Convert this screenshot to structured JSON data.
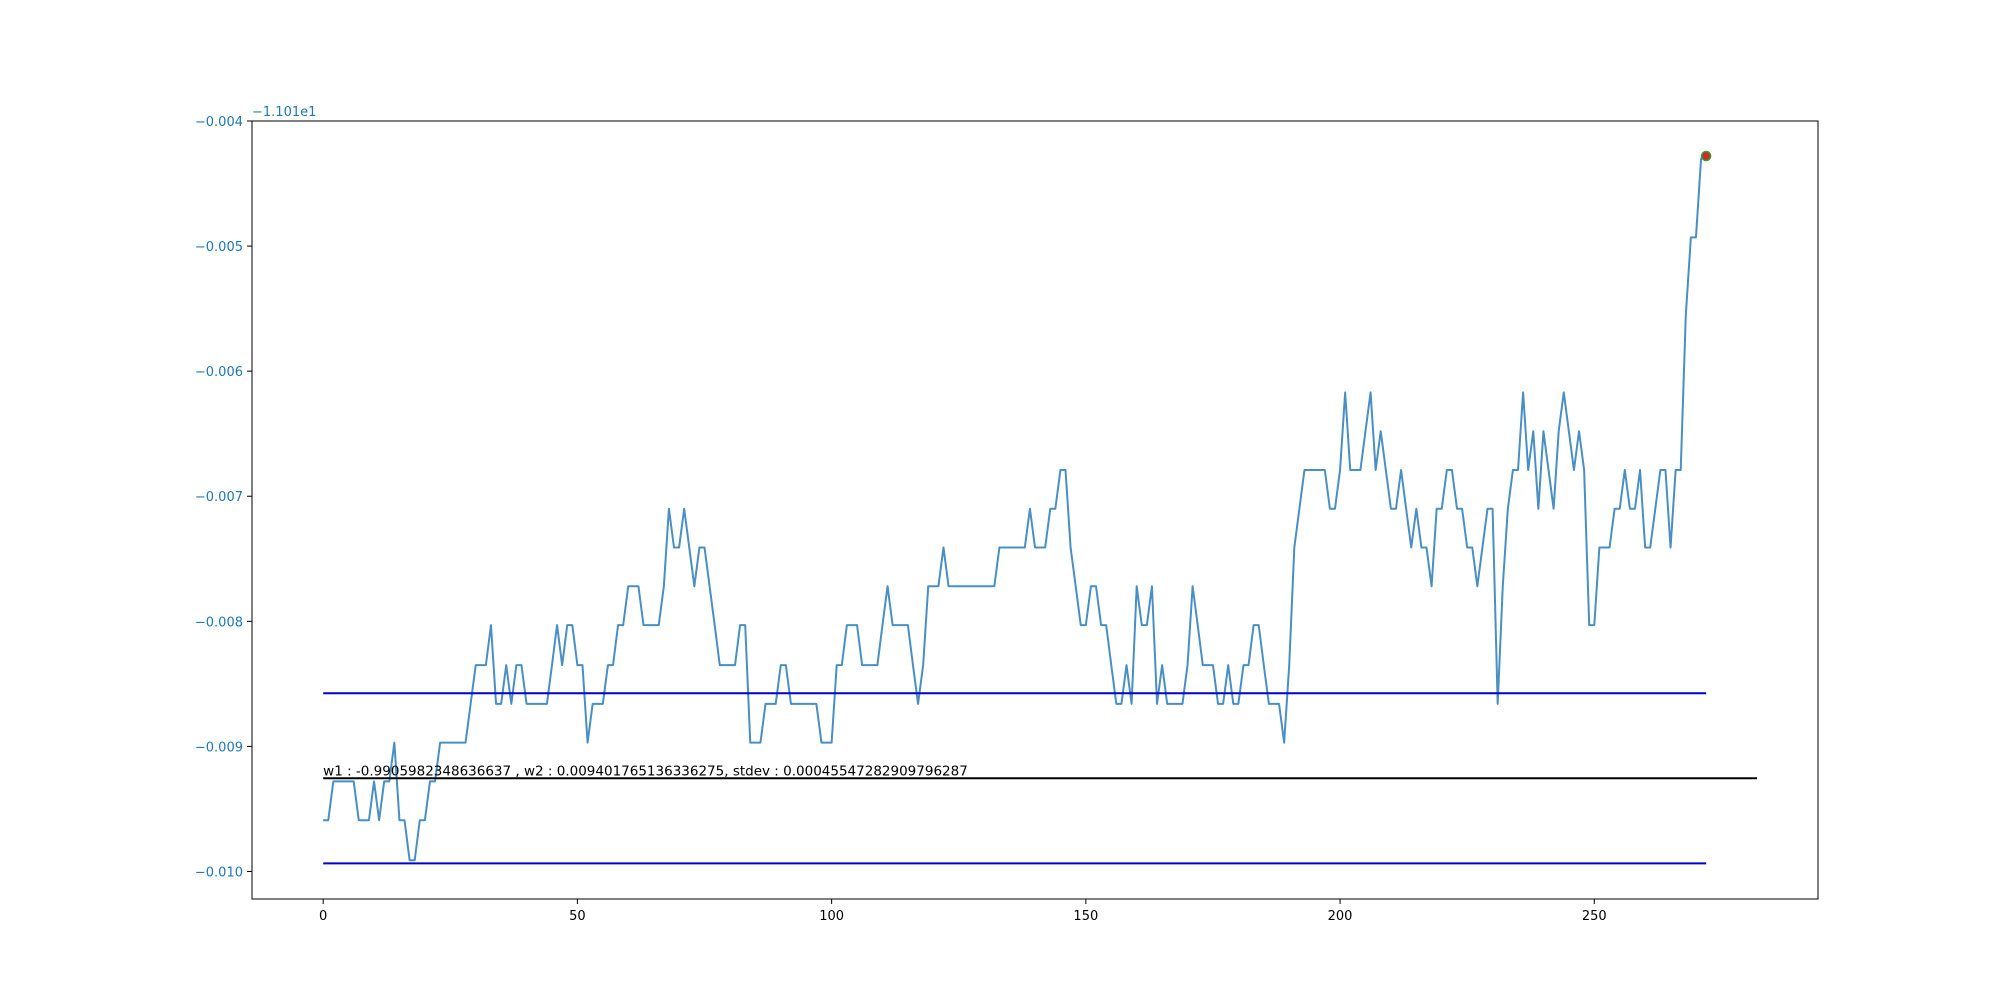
{
  "chart_data": {
    "type": "line",
    "title": "",
    "xlabel": "",
    "ylabel": "",
    "y_offset_label": "−1.101e1",
    "xlim": [
      -14,
      294
    ],
    "ylim": [
      -0.01022,
      -0.004
    ],
    "x_ticks": [
      0,
      50,
      100,
      150,
      200,
      250
    ],
    "y_ticks": [
      -0.004,
      -0.005,
      -0.006,
      -0.007,
      -0.008,
      -0.009,
      -0.01
    ],
    "y_tick_labels": [
      "−0.004",
      "−0.005",
      "−0.006",
      "−0.007",
      "−0.008",
      "−0.009",
      "−0.010"
    ],
    "grid": false,
    "series": [
      {
        "color": "#4a8fc4",
        "points": [
          [
            0,
            -0.00959
          ],
          [
            1,
            -0.00959
          ],
          [
            2,
            -0.00928
          ],
          [
            3,
            -0.00928
          ],
          [
            4,
            -0.00928
          ],
          [
            5,
            -0.00928
          ],
          [
            6,
            -0.00928
          ],
          [
            7,
            -0.00959
          ],
          [
            8,
            -0.00959
          ],
          [
            9,
            -0.00959
          ],
          [
            10,
            -0.00928
          ],
          [
            11,
            -0.00959
          ],
          [
            12,
            -0.00928
          ],
          [
            13,
            -0.00928
          ],
          [
            14,
            -0.00897
          ],
          [
            15,
            -0.00959
          ],
          [
            16,
            -0.00959
          ],
          [
            17,
            -0.00991
          ],
          [
            18,
            -0.00991
          ],
          [
            19,
            -0.00959
          ],
          [
            20,
            -0.00959
          ],
          [
            21,
            -0.00928
          ],
          [
            22,
            -0.00928
          ],
          [
            23,
            -0.00897
          ],
          [
            24,
            -0.00897
          ],
          [
            25,
            -0.00897
          ],
          [
            26,
            -0.00897
          ],
          [
            27,
            -0.00897
          ],
          [
            28,
            -0.00897
          ],
          [
            29,
            -0.00866
          ],
          [
            30,
            -0.00835
          ],
          [
            31,
            -0.00835
          ],
          [
            32,
            -0.00835
          ],
          [
            33,
            -0.00803
          ],
          [
            34,
            -0.00866
          ],
          [
            35,
            -0.00866
          ],
          [
            36,
            -0.00835
          ],
          [
            37,
            -0.00866
          ],
          [
            38,
            -0.00835
          ],
          [
            39,
            -0.00835
          ],
          [
            40,
            -0.00866
          ],
          [
            41,
            -0.00866
          ],
          [
            42,
            -0.00866
          ],
          [
            43,
            -0.00866
          ],
          [
            44,
            -0.00866
          ],
          [
            45,
            -0.00835
          ],
          [
            46,
            -0.00803
          ],
          [
            47,
            -0.00835
          ],
          [
            48,
            -0.00803
          ],
          [
            49,
            -0.00803
          ],
          [
            50,
            -0.00835
          ],
          [
            51,
            -0.00835
          ],
          [
            52,
            -0.00897
          ],
          [
            53,
            -0.00866
          ],
          [
            54,
            -0.00866
          ],
          [
            55,
            -0.00866
          ],
          [
            56,
            -0.00835
          ],
          [
            57,
            -0.00835
          ],
          [
            58,
            -0.00803
          ],
          [
            59,
            -0.00803
          ],
          [
            60,
            -0.00772
          ],
          [
            61,
            -0.00772
          ],
          [
            62,
            -0.00772
          ],
          [
            63,
            -0.00803
          ],
          [
            64,
            -0.00803
          ],
          [
            65,
            -0.00803
          ],
          [
            66,
            -0.00803
          ],
          [
            67,
            -0.00772
          ],
          [
            68,
            -0.0071
          ],
          [
            69,
            -0.00741
          ],
          [
            70,
            -0.00741
          ],
          [
            71,
            -0.0071
          ],
          [
            72,
            -0.00741
          ],
          [
            73,
            -0.00772
          ],
          [
            74,
            -0.00741
          ],
          [
            75,
            -0.00741
          ],
          [
            76,
            -0.00772
          ],
          [
            77,
            -0.00803
          ],
          [
            78,
            -0.00835
          ],
          [
            79,
            -0.00835
          ],
          [
            80,
            -0.00835
          ],
          [
            81,
            -0.00835
          ],
          [
            82,
            -0.00803
          ],
          [
            83,
            -0.00803
          ],
          [
            84,
            -0.00897
          ],
          [
            85,
            -0.00897
          ],
          [
            86,
            -0.00897
          ],
          [
            87,
            -0.00866
          ],
          [
            88,
            -0.00866
          ],
          [
            89,
            -0.00866
          ],
          [
            90,
            -0.00835
          ],
          [
            91,
            -0.00835
          ],
          [
            92,
            -0.00866
          ],
          [
            93,
            -0.00866
          ],
          [
            94,
            -0.00866
          ],
          [
            95,
            -0.00866
          ],
          [
            96,
            -0.00866
          ],
          [
            97,
            -0.00866
          ],
          [
            98,
            -0.00897
          ],
          [
            99,
            -0.00897
          ],
          [
            100,
            -0.00897
          ],
          [
            101,
            -0.00835
          ],
          [
            102,
            -0.00835
          ],
          [
            103,
            -0.00803
          ],
          [
            104,
            -0.00803
          ],
          [
            105,
            -0.00803
          ],
          [
            106,
            -0.00835
          ],
          [
            107,
            -0.00835
          ],
          [
            108,
            -0.00835
          ],
          [
            109,
            -0.00835
          ],
          [
            110,
            -0.00803
          ],
          [
            111,
            -0.00772
          ],
          [
            112,
            -0.00803
          ],
          [
            113,
            -0.00803
          ],
          [
            114,
            -0.00803
          ],
          [
            115,
            -0.00803
          ],
          [
            116,
            -0.00835
          ],
          [
            117,
            -0.00866
          ],
          [
            118,
            -0.00835
          ],
          [
            119,
            -0.00772
          ],
          [
            120,
            -0.00772
          ],
          [
            121,
            -0.00772
          ],
          [
            122,
            -0.00741
          ],
          [
            123,
            -0.00772
          ],
          [
            124,
            -0.00772
          ],
          [
            125,
            -0.00772
          ],
          [
            126,
            -0.00772
          ],
          [
            127,
            -0.00772
          ],
          [
            128,
            -0.00772
          ],
          [
            129,
            -0.00772
          ],
          [
            130,
            -0.00772
          ],
          [
            131,
            -0.00772
          ],
          [
            132,
            -0.00772
          ],
          [
            133,
            -0.00741
          ],
          [
            134,
            -0.00741
          ],
          [
            135,
            -0.00741
          ],
          [
            136,
            -0.00741
          ],
          [
            137,
            -0.00741
          ],
          [
            138,
            -0.00741
          ],
          [
            139,
            -0.0071
          ],
          [
            140,
            -0.00741
          ],
          [
            141,
            -0.00741
          ],
          [
            142,
            -0.00741
          ],
          [
            143,
            -0.0071
          ],
          [
            144,
            -0.0071
          ],
          [
            145,
            -0.00679
          ],
          [
            146,
            -0.00679
          ],
          [
            147,
            -0.00741
          ],
          [
            148,
            -0.00772
          ],
          [
            149,
            -0.00803
          ],
          [
            150,
            -0.00803
          ],
          [
            151,
            -0.00772
          ],
          [
            152,
            -0.00772
          ],
          [
            153,
            -0.00803
          ],
          [
            154,
            -0.00803
          ],
          [
            155,
            -0.00835
          ],
          [
            156,
            -0.00866
          ],
          [
            157,
            -0.00866
          ],
          [
            158,
            -0.00835
          ],
          [
            159,
            -0.00866
          ],
          [
            160,
            -0.00772
          ],
          [
            161,
            -0.00803
          ],
          [
            162,
            -0.00803
          ],
          [
            163,
            -0.00772
          ],
          [
            164,
            -0.00866
          ],
          [
            165,
            -0.00835
          ],
          [
            166,
            -0.00866
          ],
          [
            167,
            -0.00866
          ],
          [
            168,
            -0.00866
          ],
          [
            169,
            -0.00866
          ],
          [
            170,
            -0.00835
          ],
          [
            171,
            -0.00772
          ],
          [
            172,
            -0.00803
          ],
          [
            173,
            -0.00835
          ],
          [
            174,
            -0.00835
          ],
          [
            175,
            -0.00835
          ],
          [
            176,
            -0.00866
          ],
          [
            177,
            -0.00866
          ],
          [
            178,
            -0.00835
          ],
          [
            179,
            -0.00866
          ],
          [
            180,
            -0.00866
          ],
          [
            181,
            -0.00835
          ],
          [
            182,
            -0.00835
          ],
          [
            183,
            -0.00803
          ],
          [
            184,
            -0.00803
          ],
          [
            185,
            -0.00835
          ],
          [
            186,
            -0.00866
          ],
          [
            187,
            -0.00866
          ],
          [
            188,
            -0.00866
          ],
          [
            189,
            -0.00897
          ],
          [
            190,
            -0.00835
          ],
          [
            191,
            -0.00741
          ],
          [
            192,
            -0.0071
          ],
          [
            193,
            -0.00679
          ],
          [
            194,
            -0.00679
          ],
          [
            195,
            -0.00679
          ],
          [
            196,
            -0.00679
          ],
          [
            197,
            -0.00679
          ],
          [
            198,
            -0.0071
          ],
          [
            199,
            -0.0071
          ],
          [
            200,
            -0.00679
          ],
          [
            201,
            -0.00617
          ],
          [
            202,
            -0.00679
          ],
          [
            203,
            -0.00679
          ],
          [
            204,
            -0.00679
          ],
          [
            205,
            -0.00648
          ],
          [
            206,
            -0.00617
          ],
          [
            207,
            -0.00679
          ],
          [
            208,
            -0.00648
          ],
          [
            209,
            -0.00679
          ],
          [
            210,
            -0.0071
          ],
          [
            211,
            -0.0071
          ],
          [
            212,
            -0.00679
          ],
          [
            213,
            -0.0071
          ],
          [
            214,
            -0.00741
          ],
          [
            215,
            -0.0071
          ],
          [
            216,
            -0.00741
          ],
          [
            217,
            -0.00741
          ],
          [
            218,
            -0.00772
          ],
          [
            219,
            -0.0071
          ],
          [
            220,
            -0.0071
          ],
          [
            221,
            -0.00679
          ],
          [
            222,
            -0.00679
          ],
          [
            223,
            -0.0071
          ],
          [
            224,
            -0.0071
          ],
          [
            225,
            -0.00741
          ],
          [
            226,
            -0.00741
          ],
          [
            227,
            -0.00772
          ],
          [
            228,
            -0.00741
          ],
          [
            229,
            -0.0071
          ],
          [
            230,
            -0.0071
          ],
          [
            231,
            -0.00866
          ],
          [
            232,
            -0.00772
          ],
          [
            233,
            -0.0071
          ],
          [
            234,
            -0.00679
          ],
          [
            235,
            -0.00679
          ],
          [
            236,
            -0.00617
          ],
          [
            237,
            -0.00679
          ],
          [
            238,
            -0.00648
          ],
          [
            239,
            -0.0071
          ],
          [
            240,
            -0.00648
          ],
          [
            241,
            -0.00679
          ],
          [
            242,
            -0.0071
          ],
          [
            243,
            -0.00648
          ],
          [
            244,
            -0.00617
          ],
          [
            245,
            -0.00648
          ],
          [
            246,
            -0.00679
          ],
          [
            247,
            -0.00648
          ],
          [
            248,
            -0.00679
          ],
          [
            249,
            -0.00803
          ],
          [
            250,
            -0.00803
          ],
          [
            251,
            -0.00741
          ],
          [
            252,
            -0.00741
          ],
          [
            253,
            -0.00741
          ],
          [
            254,
            -0.0071
          ],
          [
            255,
            -0.0071
          ],
          [
            256,
            -0.00679
          ],
          [
            257,
            -0.0071
          ],
          [
            258,
            -0.0071
          ],
          [
            259,
            -0.00679
          ],
          [
            260,
            -0.00741
          ],
          [
            261,
            -0.00741
          ],
          [
            262,
            -0.0071
          ],
          [
            263,
            -0.00679
          ],
          [
            264,
            -0.00679
          ],
          [
            265,
            -0.00741
          ],
          [
            266,
            -0.00679
          ],
          [
            267,
            -0.00679
          ],
          [
            268,
            -0.00555
          ],
          [
            269,
            -0.00493
          ],
          [
            270,
            -0.00493
          ],
          [
            271,
            -0.0043
          ],
          [
            272,
            -0.00428
          ]
        ]
      }
    ],
    "horizontal_lines": [
      {
        "y": -0.008575,
        "x_start": 0,
        "x_end": 272,
        "color": "#0000cc"
      },
      {
        "y": -0.009935,
        "x_start": 0,
        "x_end": 272,
        "color": "#0000cc"
      },
      {
        "y": -0.009255,
        "x_start": 0,
        "x_end": 282,
        "color": "#000000"
      }
    ],
    "marker": {
      "x": 272,
      "y": -0.00428,
      "fill": "#d62728",
      "edge": "#2ca02c"
    },
    "annotation": {
      "text": "w1 : -0.9905982348636637 , w2 : 0.009401765136336275, stdev : 0.00045547282909796287",
      "x": 0,
      "y": -0.009255
    },
    "colors": {
      "axis": "#000000",
      "ytick": "#1f77b4",
      "xtick": "#000000"
    }
  }
}
